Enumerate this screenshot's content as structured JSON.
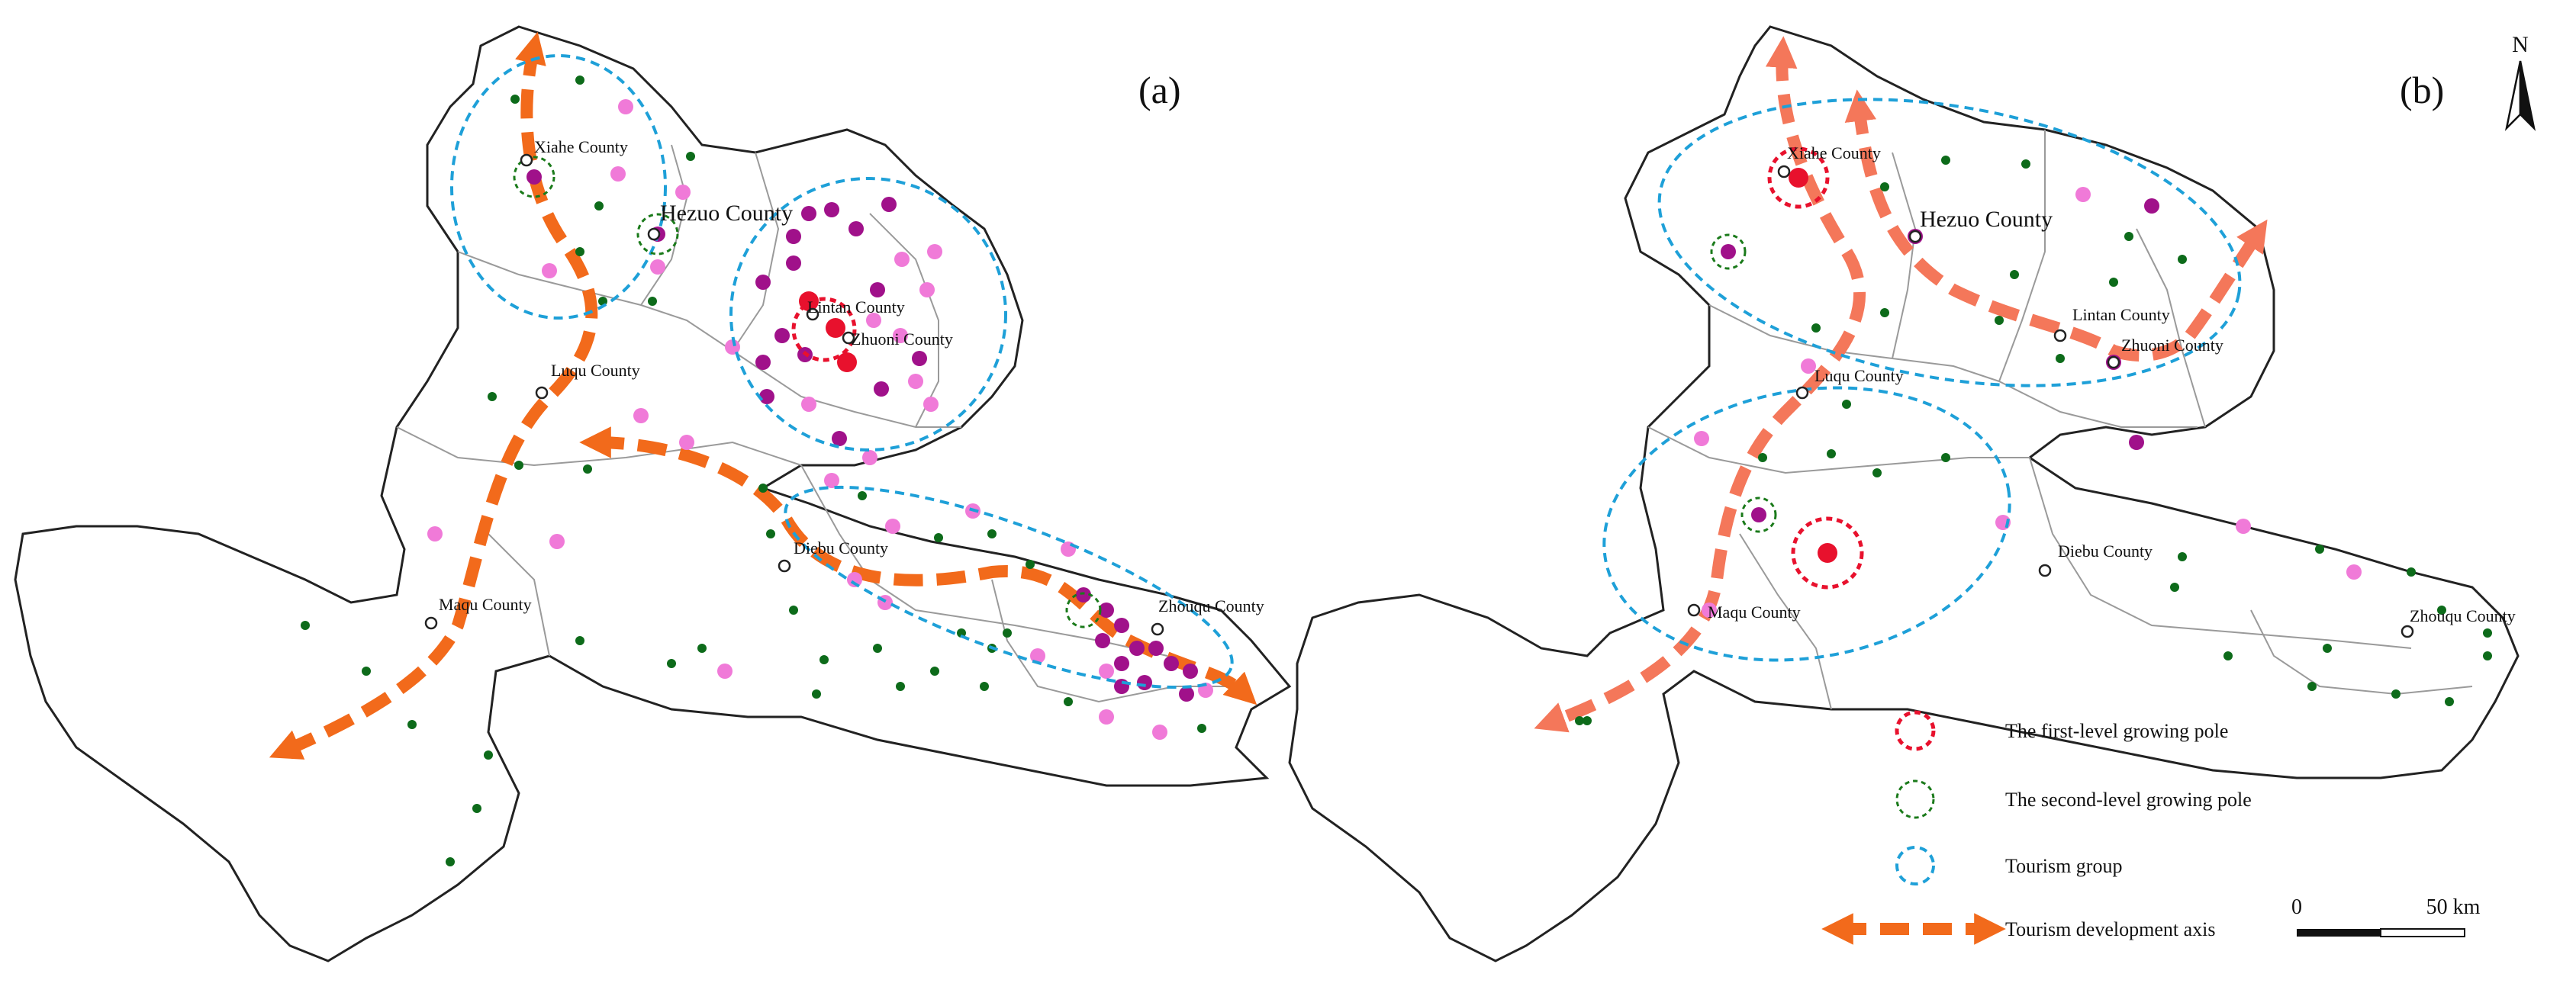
{
  "panels": {
    "a": {
      "label": "(a)",
      "counties": [
        "Xiahe County",
        "Hezuo County",
        "Lintan County",
        "Zhuoni County",
        "Luqu County",
        "Diebu County",
        "Maqu County",
        "Zhouqu County"
      ]
    },
    "b": {
      "label": "(b)",
      "counties": [
        "Xiahe County",
        "Hezuo County",
        "Lintan County",
        "Zhuoni County",
        "Luqu County",
        "Diebu County",
        "Maqu County",
        "Zhouqu County"
      ]
    }
  },
  "legend": {
    "first_level": "The first-level growing pole",
    "second_level": "The second-level growing pole",
    "tourism_group": "Tourism group",
    "dev_axis": "Tourism development axis"
  },
  "scale_bar": {
    "start": "0",
    "end": "50 km"
  },
  "north_arrow": {
    "label": "N"
  },
  "colors": {
    "first_level": "#e8112d",
    "second_level": "#1a7a1a",
    "tourism_group": "#1ea0d8",
    "axis": "#f26a1b",
    "axis_b": "#f4775a",
    "dark_green_point": "#0d6b1a",
    "pink_point": "#f07ad8",
    "purple_point": "#a0118a",
    "border": "#222222",
    "inner_border": "#9a9a9a"
  }
}
